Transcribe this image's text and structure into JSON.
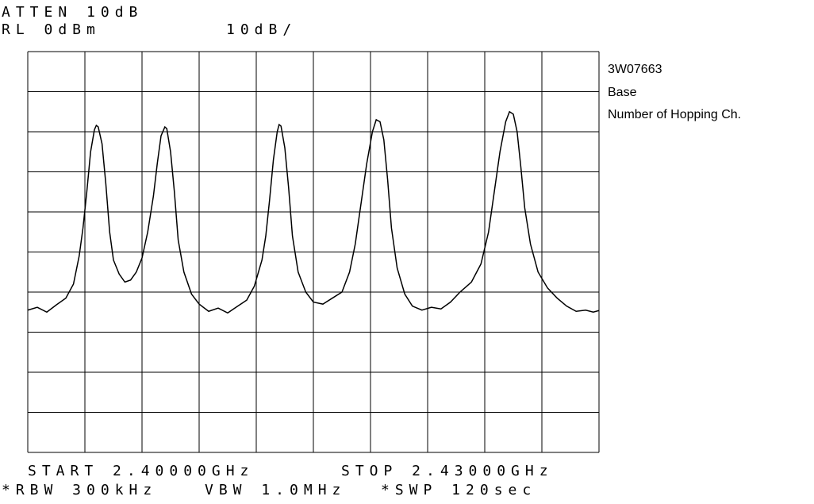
{
  "chart_data": {
    "type": "line",
    "header": {
      "atten": "ATTEN 10dB",
      "ref_level": "RL 0dBm",
      "scale": "10dB/"
    },
    "footer": {
      "start": "START 2.40000GHz",
      "stop": "STOP 2.43000GHz",
      "rbw": "*RBW 300kHz",
      "vbw": "VBW 1.0MHz",
      "sweep": "*SWP 120sec"
    },
    "annotations": [
      "3W07663",
      "Base",
      "Number of Hopping Ch."
    ],
    "xlim": [
      2.4,
      2.43
    ],
    "ylim": [
      -100,
      0
    ],
    "grid": true,
    "grid_divisions": 10,
    "color": "#000000",
    "x": [
      2.4,
      2.4005,
      2.401,
      2.4015,
      2.402,
      2.4024,
      2.4027,
      2.4029,
      2.4031,
      2.4033,
      2.4035,
      2.4036,
      2.4037,
      2.4039,
      2.4041,
      2.4043,
      2.4045,
      2.4048,
      2.4051,
      2.4054,
      2.4057,
      2.406,
      2.4063,
      2.4066,
      2.4068,
      2.407,
      2.4072,
      2.4073,
      2.4075,
      2.4077,
      2.4079,
      2.4082,
      2.4086,
      2.409,
      2.4095,
      2.41,
      2.4105,
      2.411,
      2.4115,
      2.4119,
      2.4123,
      2.4125,
      2.4127,
      2.4129,
      2.4131,
      2.4132,
      2.4133,
      2.4135,
      2.4137,
      2.4139,
      2.4142,
      2.4146,
      2.415,
      2.4155,
      2.416,
      2.4165,
      2.4169,
      2.4172,
      2.4175,
      2.4178,
      2.4181,
      2.4183,
      2.4185,
      2.4187,
      2.4189,
      2.4191,
      2.4194,
      2.4198,
      2.4202,
      2.4207,
      2.4212,
      2.4217,
      2.4222,
      2.4227,
      2.4233,
      2.4238,
      2.4242,
      2.4245,
      2.4248,
      2.4251,
      2.4253,
      2.4255,
      2.4257,
      2.4259,
      2.4261,
      2.4264,
      2.4268,
      2.4273,
      2.4278,
      2.4283,
      2.4288,
      2.4293,
      2.4297,
      2.43
    ],
    "values": [
      -64.5,
      -63.8,
      -65.0,
      -63.2,
      -61.5,
      -58.0,
      -51.0,
      -44.0,
      -35.0,
      -25.0,
      -19.5,
      -18.4,
      -18.8,
      -23.0,
      -33.0,
      -45.0,
      -52.0,
      -55.5,
      -57.5,
      -57.0,
      -55.0,
      -51.5,
      -45.0,
      -36.0,
      -28.0,
      -21.0,
      -18.8,
      -19.2,
      -25.0,
      -35.0,
      -47.0,
      -55.0,
      -60.5,
      -63.0,
      -64.8,
      -64.0,
      -65.2,
      -63.6,
      -62.0,
      -58.5,
      -52.0,
      -46.0,
      -37.0,
      -27.0,
      -20.0,
      -18.2,
      -18.6,
      -24.0,
      -34.0,
      -46.0,
      -55.0,
      -60.0,
      -62.5,
      -63.0,
      -61.5,
      -60.0,
      -55.0,
      -48.0,
      -38.0,
      -28.0,
      -20.0,
      -17.0,
      -17.5,
      -22.0,
      -32.0,
      -44.0,
      -54.0,
      -60.5,
      -63.5,
      -64.5,
      -63.8,
      -64.2,
      -62.5,
      -60.0,
      -57.5,
      -53.0,
      -45.0,
      -35.0,
      -25.0,
      -17.5,
      -15.0,
      -15.6,
      -20.0,
      -29.0,
      -39.0,
      -48.0,
      -55.0,
      -59.0,
      -61.5,
      -63.5,
      -64.8,
      -64.5,
      -65.0,
      -64.6
    ]
  }
}
